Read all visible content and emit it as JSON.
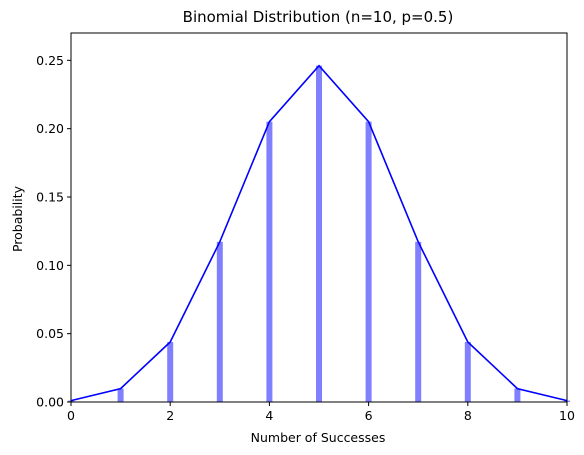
{
  "chart_data": {
    "type": "bar",
    "title": "Binomial Distribution (n=10, p=0.5)",
    "xlabel": "Number of Successes",
    "ylabel": "Probability",
    "xlim": [
      0,
      10
    ],
    "ylim": [
      0,
      0.27
    ],
    "xticks": [
      "0",
      "2",
      "4",
      "6",
      "8",
      "10"
    ],
    "yticks": [
      "0.00",
      "0.05",
      "0.10",
      "0.15",
      "0.20",
      "0.25"
    ],
    "grid": false,
    "series": [
      {
        "type": "bar",
        "color": "#8080ff",
        "x": [
          0,
          1,
          2,
          3,
          4,
          5,
          6,
          7,
          8,
          9,
          10
        ],
        "values": [
          0.001,
          0.0098,
          0.0439,
          0.1172,
          0.2051,
          0.2461,
          0.2051,
          0.1172,
          0.0439,
          0.0098,
          0.001
        ]
      },
      {
        "type": "line",
        "color": "#0000ff",
        "x": [
          0,
          1,
          2,
          3,
          4,
          5,
          6,
          7,
          8,
          9,
          10
        ],
        "values": [
          0.001,
          0.0098,
          0.0439,
          0.1172,
          0.2051,
          0.2461,
          0.2051,
          0.1172,
          0.0439,
          0.0098,
          0.001
        ]
      }
    ]
  }
}
